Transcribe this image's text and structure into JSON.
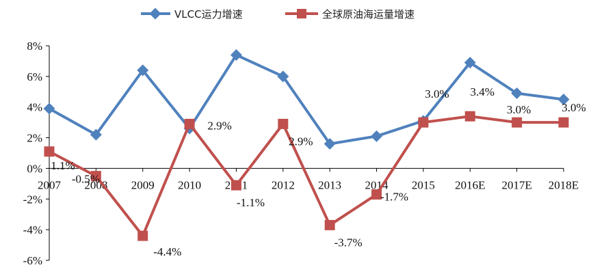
{
  "chart_data": {
    "type": "line",
    "title": "",
    "xlabel": "",
    "ylabel": "",
    "categories": [
      "2007",
      "2008",
      "2009",
      "2010",
      "2011",
      "2012",
      "2013",
      "2014",
      "2015",
      "2016E",
      "2017E",
      "2018E"
    ],
    "ylim": [
      -6,
      8
    ],
    "yticks": [
      -6,
      -4,
      -2,
      0,
      2,
      4,
      6,
      8
    ],
    "ytick_labels": [
      "-6%",
      "-4%",
      "-2%",
      "0%",
      "2%",
      "4%",
      "6%",
      "8%"
    ],
    "grid": false,
    "legend_position": "top",
    "series": [
      {
        "name": "VLCC运力增速",
        "color": "#4F81BD",
        "marker": "diamond",
        "values": [
          3.9,
          2.2,
          6.4,
          2.6,
          7.4,
          6.0,
          1.6,
          2.1,
          3.1,
          6.9,
          4.9,
          4.5
        ]
      },
      {
        "name": "全球原油海运量增速",
        "color": "#C0504D",
        "marker": "square",
        "values": [
          1.1,
          -0.5,
          -4.4,
          2.9,
          -1.1,
          2.9,
          -3.7,
          -1.7,
          3.0,
          3.4,
          3.0,
          3.0
        ],
        "data_labels": [
          "1.1%",
          "-0.5%",
          "-4.4%",
          "2.9%",
          "-1.1%",
          "2.9%",
          "-3.7%",
          "-1.7%",
          "3.0%",
          "3.4%",
          "3.0%",
          "3.0%"
        ]
      }
    ]
  }
}
